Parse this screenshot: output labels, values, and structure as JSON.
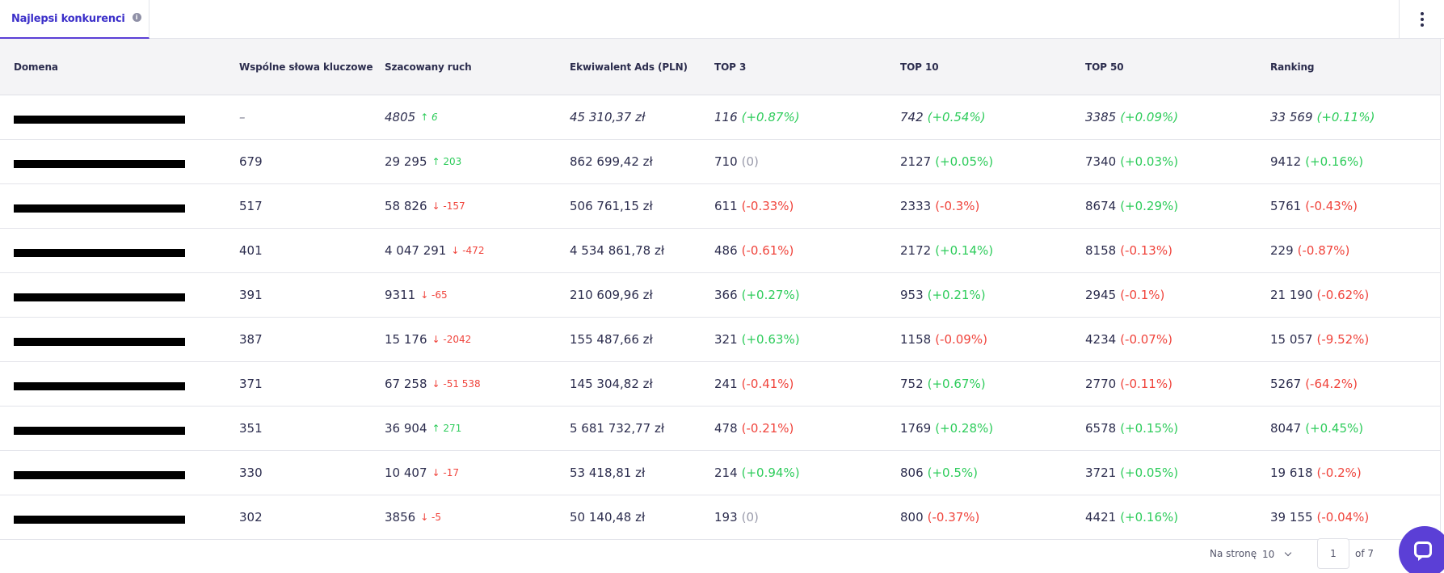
{
  "tab": {
    "label": "Najlepsi konkurenci",
    "info_glyph": "i"
  },
  "columns": [
    "Domena",
    "Wspólne słowa kluczowe",
    "Szacowany ruch",
    "Ekwiwalent Ads (PLN)",
    "TOP 3",
    "TOP 10",
    "TOP 50",
    "Ranking"
  ],
  "rows": [
    {
      "keywords": "–",
      "traffic": "4805",
      "traffic_delta": "↑ 6",
      "traffic_trend": "pos",
      "ads": "45 310,37 zł",
      "top3": "116",
      "top3_delta": "(+0.87%)",
      "top3_trend": "pos",
      "top10": "742",
      "top10_delta": "(+0.54%)",
      "top10_trend": "pos",
      "top50": "3385",
      "top50_delta": "(+0.09%)",
      "top50_trend": "pos",
      "rank": "33 569",
      "rank_delta": "(+0.11%)",
      "rank_trend": "pos",
      "own": true
    },
    {
      "keywords": "679",
      "traffic": "29 295",
      "traffic_delta": "↑ 203",
      "traffic_trend": "pos",
      "ads": "862 699,42 zł",
      "top3": "710",
      "top3_delta": "(0)",
      "top3_trend": "zero",
      "top10": "2127",
      "top10_delta": "(+0.05%)",
      "top10_trend": "pos",
      "top50": "7340",
      "top50_delta": "(+0.03%)",
      "top50_trend": "pos",
      "rank": "9412",
      "rank_delta": "(+0.16%)",
      "rank_trend": "pos"
    },
    {
      "keywords": "517",
      "traffic": "58 826",
      "traffic_delta": "↓ -157",
      "traffic_trend": "neg",
      "ads": "506 761,15 zł",
      "top3": "611",
      "top3_delta": "(-0.33%)",
      "top3_trend": "neg",
      "top10": "2333",
      "top10_delta": "(-0.3%)",
      "top10_trend": "neg",
      "top50": "8674",
      "top50_delta": "(+0.29%)",
      "top50_trend": "pos",
      "rank": "5761",
      "rank_delta": "(-0.43%)",
      "rank_trend": "neg"
    },
    {
      "keywords": "401",
      "traffic": "4 047 291",
      "traffic_delta": "↓ -472",
      "traffic_trend": "neg",
      "ads": "4 534 861,78 zł",
      "top3": "486",
      "top3_delta": "(-0.61%)",
      "top3_trend": "neg",
      "top10": "2172",
      "top10_delta": "(+0.14%)",
      "top10_trend": "pos",
      "top50": "8158",
      "top50_delta": "(-0.13%)",
      "top50_trend": "neg",
      "rank": "229",
      "rank_delta": "(-0.87%)",
      "rank_trend": "neg"
    },
    {
      "keywords": "391",
      "traffic": "9311",
      "traffic_delta": "↓ -65",
      "traffic_trend": "neg",
      "ads": "210 609,96 zł",
      "top3": "366",
      "top3_delta": "(+0.27%)",
      "top3_trend": "pos",
      "top10": "953",
      "top10_delta": "(+0.21%)",
      "top10_trend": "pos",
      "top50": "2945",
      "top50_delta": "(-0.1%)",
      "top50_trend": "neg",
      "rank": "21 190",
      "rank_delta": "(-0.62%)",
      "rank_trend": "neg"
    },
    {
      "keywords": "387",
      "traffic": "15 176",
      "traffic_delta": "↓ -2042",
      "traffic_trend": "neg",
      "ads": "155 487,66 zł",
      "top3": "321",
      "top3_delta": "(+0.63%)",
      "top3_trend": "pos",
      "top10": "1158",
      "top10_delta": "(-0.09%)",
      "top10_trend": "neg",
      "top50": "4234",
      "top50_delta": "(-0.07%)",
      "top50_trend": "neg",
      "rank": "15 057",
      "rank_delta": "(-9.52%)",
      "rank_trend": "neg"
    },
    {
      "keywords": "371",
      "traffic": "67 258",
      "traffic_delta": "↓ -51 538",
      "traffic_trend": "neg",
      "ads": "145 304,82 zł",
      "top3": "241",
      "top3_delta": "(-0.41%)",
      "top3_trend": "neg",
      "top10": "752",
      "top10_delta": "(+0.67%)",
      "top10_trend": "pos",
      "top50": "2770",
      "top50_delta": "(-0.11%)",
      "top50_trend": "neg",
      "rank": "5267",
      "rank_delta": "(-64.2%)",
      "rank_trend": "neg"
    },
    {
      "keywords": "351",
      "traffic": "36 904",
      "traffic_delta": "↑ 271",
      "traffic_trend": "pos",
      "ads": "5 681 732,77 zł",
      "top3": "478",
      "top3_delta": "(-0.21%)",
      "top3_trend": "neg",
      "top10": "1769",
      "top10_delta": "(+0.28%)",
      "top10_trend": "pos",
      "top50": "6578",
      "top50_delta": "(+0.15%)",
      "top50_trend": "pos",
      "rank": "8047",
      "rank_delta": "(+0.45%)",
      "rank_trend": "pos"
    },
    {
      "keywords": "330",
      "traffic": "10 407",
      "traffic_delta": "↓ -17",
      "traffic_trend": "neg",
      "ads": "53 418,81 zł",
      "top3": "214",
      "top3_delta": "(+0.94%)",
      "top3_trend": "pos",
      "top10": "806",
      "top10_delta": "(+0.5%)",
      "top10_trend": "pos",
      "top50": "3721",
      "top50_delta": "(+0.05%)",
      "top50_trend": "pos",
      "rank": "19 618",
      "rank_delta": "(-0.2%)",
      "rank_trend": "neg"
    },
    {
      "keywords": "302",
      "traffic": "3856",
      "traffic_delta": "↓ -5",
      "traffic_trend": "neg",
      "ads": "50 140,48 zł",
      "top3": "193",
      "top3_delta": "(0)",
      "top3_trend": "zero",
      "top10": "800",
      "top10_delta": "(-0.37%)",
      "top10_trend": "neg",
      "top50": "4421",
      "top50_delta": "(+0.16%)",
      "top50_trend": "pos",
      "rank": "39 155",
      "rank_delta": "(-0.04%)",
      "rank_trend": "neg"
    }
  ],
  "pagination": {
    "per_page_label": "Na stronę",
    "per_page_value": "10",
    "current_page": "1",
    "of_label": "of 7"
  },
  "colors": {
    "accent": "#5b3fd6",
    "positive": "#2ecc5b",
    "negative": "#f0443c",
    "neutral": "#9a9bab"
  },
  "icons": {
    "tab_info": "info-icon",
    "menu": "more-vertical-icon",
    "per_page": "chevron-down-icon",
    "chat": "chat-icon"
  }
}
